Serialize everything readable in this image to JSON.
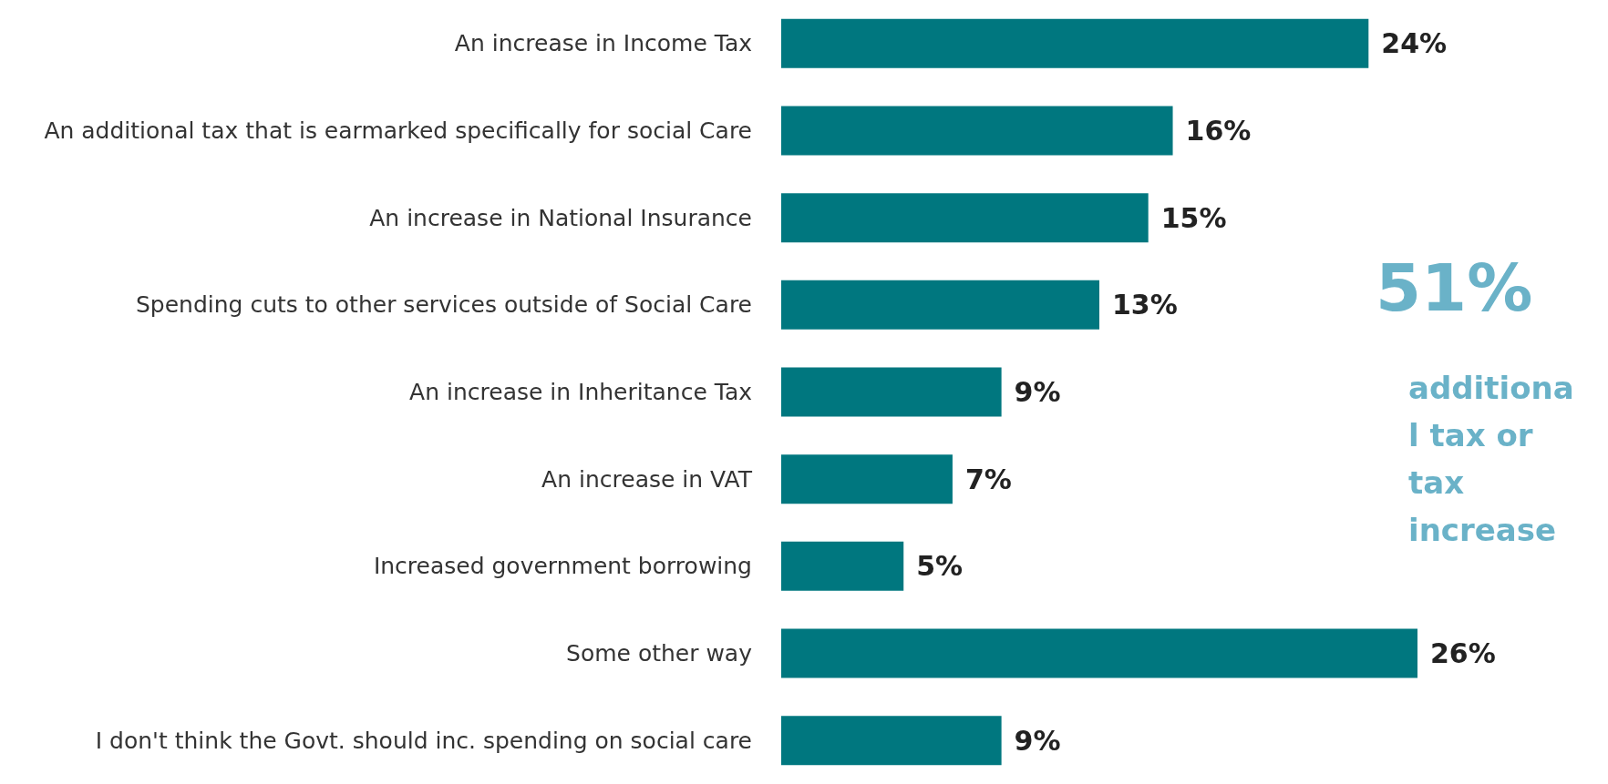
{
  "chart_data": {
    "type": "bar",
    "orientation": "horizontal",
    "categories": [
      "An increase in Income Tax",
      "An additional tax that is earmarked specifically for social Care",
      "An increase in National Insurance",
      "Spending cuts to other services outside of Social Care",
      "An increase in Inheritance Tax",
      "An increase in VAT",
      "Increased government borrowing",
      "Some other way",
      "I don't think the Govt. should inc. spending on social care"
    ],
    "values": [
      24,
      16,
      15,
      13,
      9,
      7,
      5,
      26,
      9
    ],
    "value_labels": [
      "24%",
      "16%",
      "15%",
      "13%",
      "9%",
      "7%",
      "5%",
      "26%",
      "9%"
    ],
    "color": "#00777f",
    "annotations": [
      "51%",
      "additional tax or tax increase"
    ]
  }
}
